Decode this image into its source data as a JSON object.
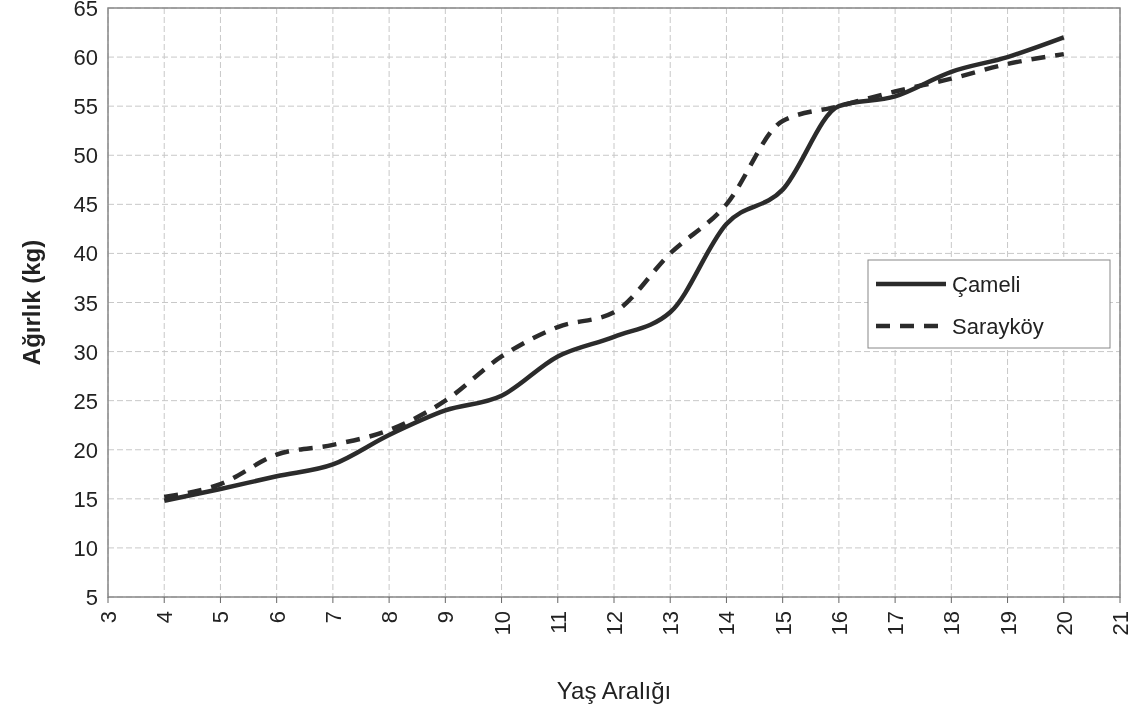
{
  "chart_data": {
    "type": "line",
    "xlabel": "Yaş Aralığı",
    "ylabel": "Ağırlık (kg)",
    "x": [
      4,
      5,
      6,
      7,
      8,
      9,
      10,
      11,
      12,
      13,
      14,
      15,
      16,
      17,
      18,
      19,
      20
    ],
    "xlim": [
      3,
      21
    ],
    "xticks": [
      3,
      4,
      5,
      6,
      7,
      8,
      9,
      10,
      11,
      12,
      13,
      14,
      15,
      16,
      17,
      18,
      19,
      20,
      21
    ],
    "ylim": [
      5,
      65
    ],
    "yticks": [
      5,
      10,
      15,
      20,
      25,
      30,
      35,
      40,
      45,
      50,
      55,
      60,
      65
    ],
    "grid": true,
    "legend": "right",
    "series": [
      {
        "name": "Çameli",
        "color": "#2b2b2b",
        "line_style": "solid",
        "values": [
          14.8,
          16,
          17.3,
          18.5,
          21.5,
          24,
          25.5,
          29.5,
          31.5,
          34,
          43,
          46.5,
          55,
          56,
          58.5,
          60,
          62
        ]
      },
      {
        "name": "Sarayköy",
        "color": "#2b2b2b",
        "line_style": "dashed",
        "values": [
          15.2,
          16.5,
          19.5,
          20.5,
          22,
          25,
          29.5,
          32.5,
          34,
          40,
          45,
          53.5,
          55,
          56.5,
          57.8,
          59.3,
          60.3
        ]
      }
    ]
  }
}
